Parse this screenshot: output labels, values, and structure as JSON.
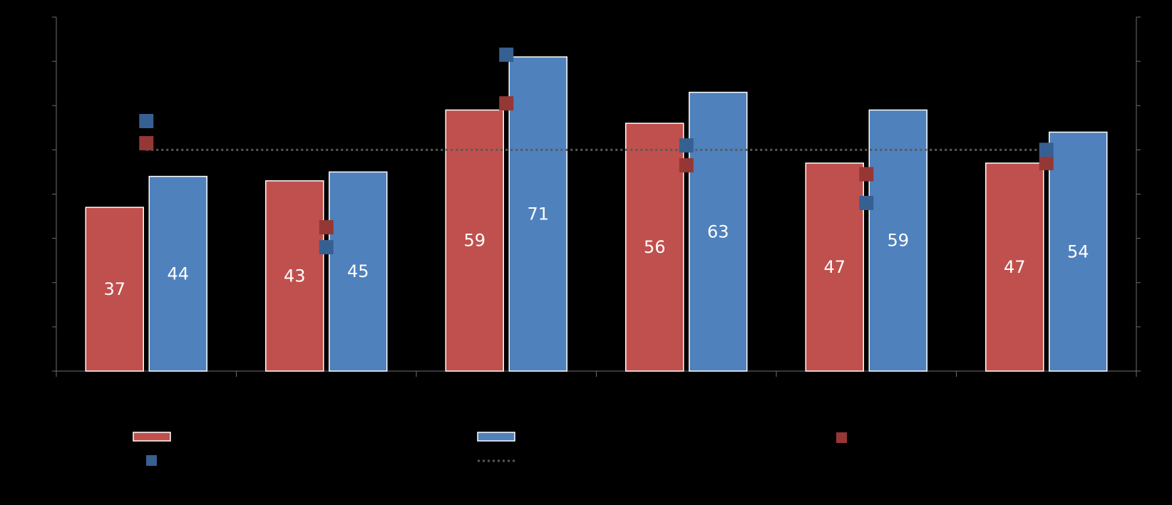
{
  "colors": {
    "background": "#000000",
    "series_a": "#c0504d",
    "series_b": "#4f81bd",
    "marker_a": "#953735",
    "marker_b": "#376092",
    "axis": "#6e6e6e",
    "reference_line": "#595959",
    "bar_outline": "#ffffff",
    "label": "#ffffff"
  },
  "chart_data": {
    "type": "bar",
    "title": "",
    "xlabel": "",
    "ylabel": "",
    "ylim": [
      0,
      80
    ],
    "categories": [
      "",
      "",
      "",
      "",
      "",
      ""
    ],
    "grid": false,
    "legend_position": "bottom",
    "series": [
      {
        "kind": "bar",
        "color": "#c0504d",
        "values": [
          37,
          43,
          59,
          56,
          47,
          47
        ],
        "labels": [
          "37",
          "43",
          "59",
          "56",
          "47",
          "47"
        ]
      },
      {
        "kind": "bar",
        "color": "#4f81bd",
        "values": [
          44,
          45,
          71,
          63,
          59,
          54
        ],
        "labels": [
          "44",
          "45",
          "71",
          "63",
          "59",
          "54"
        ]
      },
      {
        "kind": "marker",
        "color": "#953735",
        "values": [
          51.5,
          32.5,
          60.5,
          46.5,
          44.5,
          47.0
        ]
      },
      {
        "kind": "marker",
        "color": "#376092",
        "values": [
          56.5,
          28.0,
          71.5,
          51.0,
          38.0,
          50.0
        ]
      },
      {
        "kind": "reference_line",
        "color": "#595959",
        "value": 50
      }
    ]
  }
}
